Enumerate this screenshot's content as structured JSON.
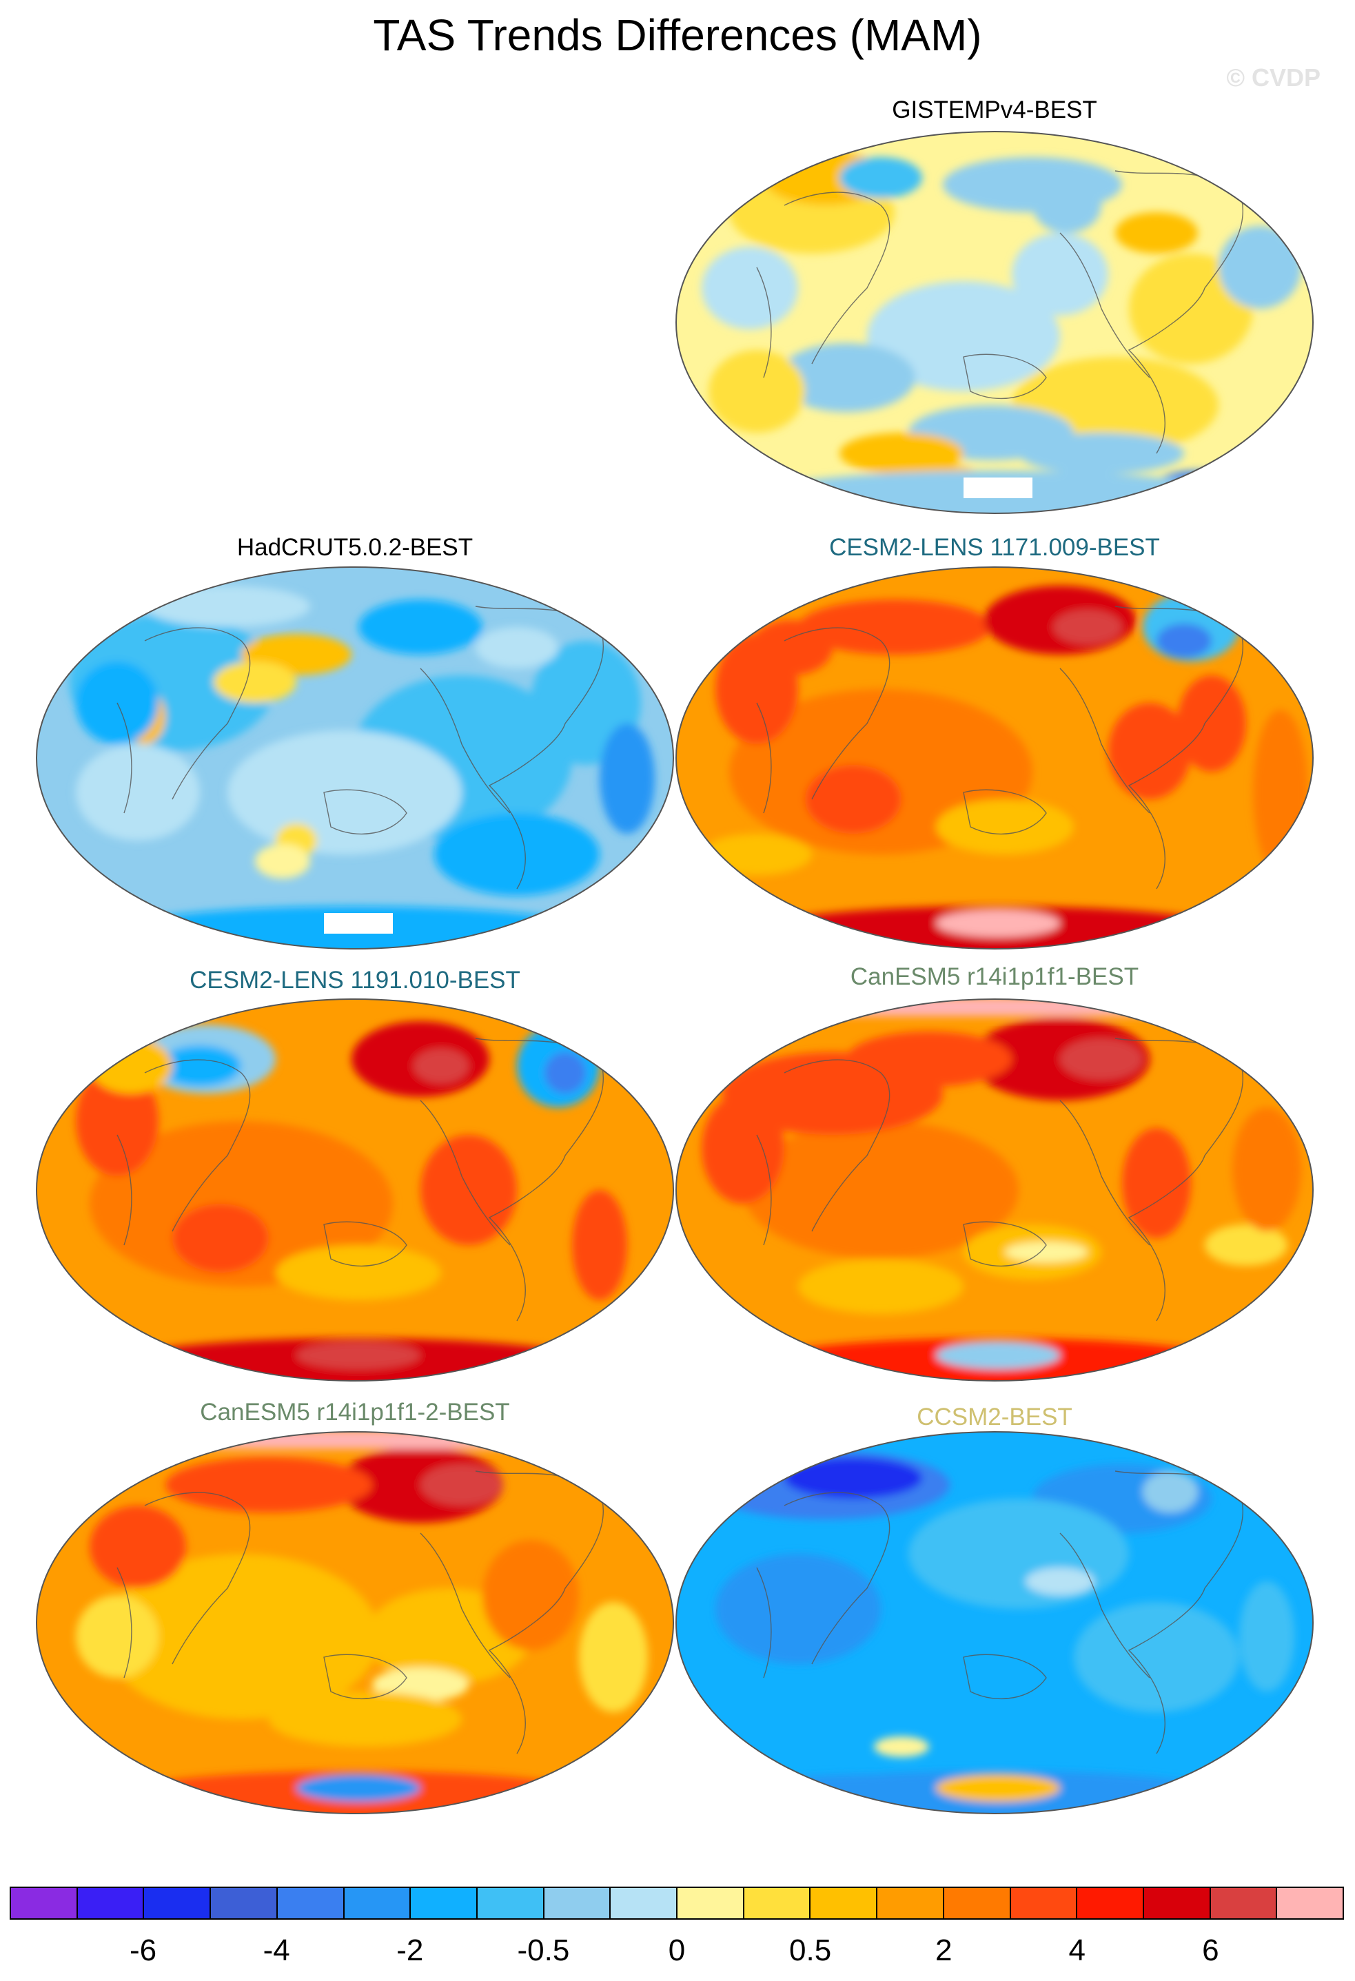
{
  "title": "TAS Trends Differences (MAM)",
  "watermark": "© CVDP",
  "panels": [
    {
      "label": "GISTEMPv4-BEST",
      "label_color": "#000000",
      "field": "gistemp"
    },
    {
      "label": "HadCRUT5.0.2-BEST",
      "label_color": "#000000",
      "field": "hadcrut"
    },
    {
      "label": "CESM2-LENS 1171.009-BEST",
      "label_color": "#1e6a80",
      "field": "cesm_a"
    },
    {
      "label": "CESM2-LENS 1191.010-BEST",
      "label_color": "#1e6a80",
      "field": "cesm_b"
    },
    {
      "label": "CanESM5 r14i1p1f1-BEST",
      "label_color": "#6a8a6a",
      "field": "canesm_a"
    },
    {
      "label": "CanESM5 r14i1p1f1-2-BEST",
      "label_color": "#6a8a6a",
      "field": "canesm_b"
    },
    {
      "label": "CCSM2-BEST",
      "label_color": "#cfc070",
      "field": "ccsm2"
    }
  ],
  "colorbar": {
    "colors": [
      "#8a2be2",
      "#3a1ff5",
      "#1a2ef0",
      "#3d5fd6",
      "#3a7ff0",
      "#2696f5",
      "#10b0ff",
      "#3fc0f5",
      "#8fcdee",
      "#b6e2f5",
      "#fff59a",
      "#ffe03c",
      "#ffc000",
      "#ff9c00",
      "#ff7a00",
      "#ff4a10",
      "#ff1a00",
      "#d8000a",
      "#d94040",
      "#ffb4b4"
    ],
    "labels": [
      "-6",
      "-4",
      "-2",
      "-0.5",
      "0",
      "0.5",
      "2",
      "4",
      "6"
    ]
  }
}
